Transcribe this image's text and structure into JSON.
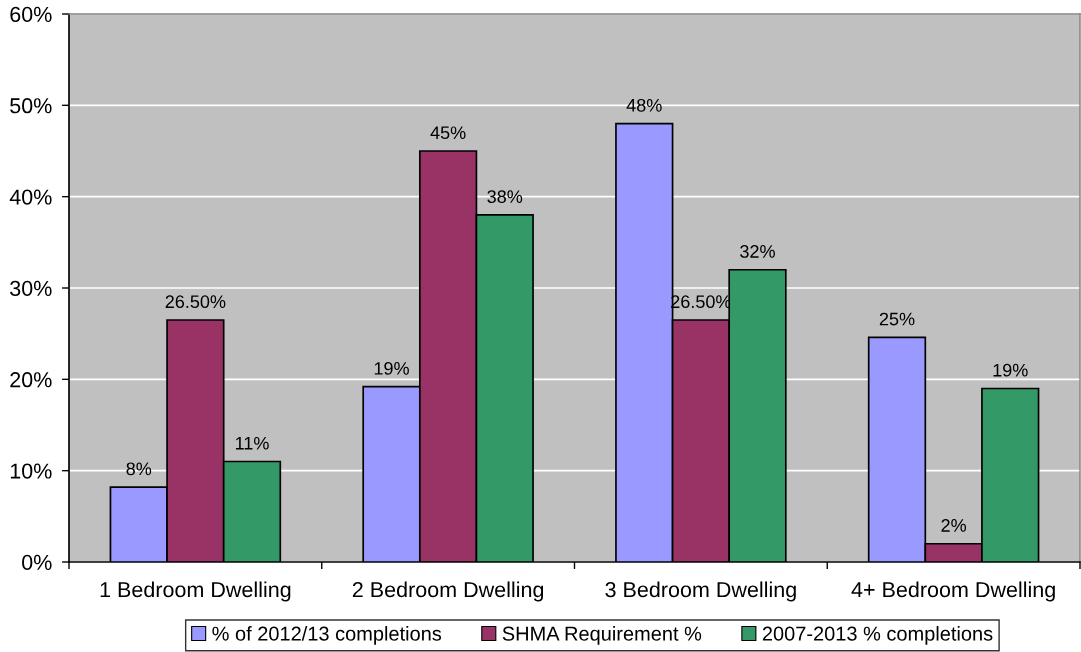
{
  "chart_data": {
    "type": "bar",
    "categories": [
      "1 Bedroom Dwelling",
      "2 Bedroom Dwelling",
      "3 Bedroom Dwelling",
      "4+ Bedroom Dwelling"
    ],
    "series": [
      {
        "name": "% of 2012/13 completions",
        "color": "#9999ff",
        "values": [
          8.2,
          19.2,
          48,
          24.6
        ],
        "value_labels": [
          "8%",
          "19%",
          "48%",
          "25%"
        ]
      },
      {
        "name": "SHMA Requirement %",
        "color": "#993366",
        "values": [
          26.5,
          45,
          26.5,
          2
        ],
        "value_labels": [
          "26.50%",
          "45%",
          "26.50%",
          "2%"
        ]
      },
      {
        "name": "2007-2013 % completions",
        "color": "#339966",
        "values": [
          11,
          38,
          32,
          19
        ],
        "value_labels": [
          "11%",
          "38%",
          "32%",
          "19%"
        ]
      }
    ],
    "ylim": [
      0,
      60
    ],
    "yticks": [
      {
        "value": 0,
        "label": "0%"
      },
      {
        "value": 10,
        "label": "10%"
      },
      {
        "value": 20,
        "label": "20%"
      },
      {
        "value": 30,
        "label": "30%"
      },
      {
        "value": 40,
        "label": "40%"
      },
      {
        "value": 50,
        "label": "50%"
      },
      {
        "value": 60,
        "label": "60%"
      }
    ],
    "grid": "y",
    "legend": "bottom"
  }
}
